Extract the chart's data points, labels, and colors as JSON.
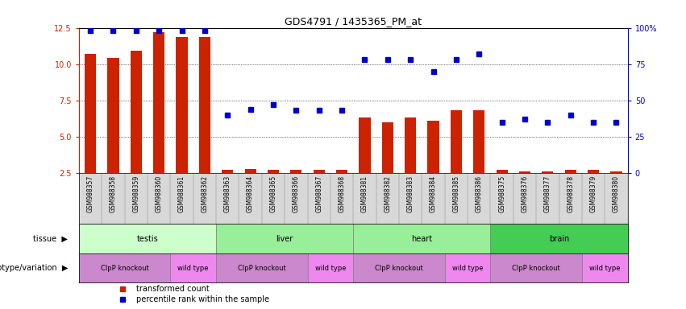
{
  "title": "GDS4791 / 1435365_PM_at",
  "samples": [
    "GSM988357",
    "GSM988358",
    "GSM988359",
    "GSM988360",
    "GSM988361",
    "GSM988362",
    "GSM988363",
    "GSM988364",
    "GSM988365",
    "GSM988366",
    "GSM988367",
    "GSM988368",
    "GSM988381",
    "GSM988382",
    "GSM988383",
    "GSM988384",
    "GSM988385",
    "GSM988386",
    "GSM988375",
    "GSM988376",
    "GSM988377",
    "GSM988378",
    "GSM988379",
    "GSM988380"
  ],
  "bar_values": [
    10.7,
    10.4,
    10.9,
    12.2,
    11.85,
    11.85,
    2.7,
    2.8,
    2.7,
    2.7,
    2.7,
    2.7,
    6.3,
    6.0,
    6.3,
    6.1,
    6.8,
    6.8,
    2.7,
    2.6,
    2.6,
    2.7,
    2.7,
    2.6
  ],
  "percentile_values": [
    98,
    98,
    98,
    98,
    98,
    98,
    40,
    44,
    47,
    43,
    43,
    43,
    78,
    78,
    78,
    70,
    78,
    82,
    35,
    37,
    35,
    40,
    35,
    35
  ],
  "bar_color": "#cc2200",
  "dot_color": "#0000cc",
  "ylim_left": [
    2.5,
    12.5
  ],
  "ylim_right": [
    0,
    100
  ],
  "yticks_left": [
    2.5,
    5.0,
    7.5,
    10.0,
    12.5
  ],
  "yticks_right": [
    0,
    25,
    50,
    75,
    100
  ],
  "tissue_groups": [
    {
      "label": "testis",
      "start": 0,
      "end": 6,
      "color": "#ccffcc"
    },
    {
      "label": "liver",
      "start": 6,
      "end": 12,
      "color": "#99ee99"
    },
    {
      "label": "heart",
      "start": 12,
      "end": 18,
      "color": "#99ee99"
    },
    {
      "label": "brain",
      "start": 18,
      "end": 24,
      "color": "#44cc55"
    }
  ],
  "genotype_groups": [
    {
      "label": "ClpP knockout",
      "start": 0,
      "end": 4,
      "color": "#cc88cc"
    },
    {
      "label": "wild type",
      "start": 4,
      "end": 6,
      "color": "#ee88ee"
    },
    {
      "label": "ClpP knockout",
      "start": 6,
      "end": 10,
      "color": "#cc88cc"
    },
    {
      "label": "wild type",
      "start": 10,
      "end": 12,
      "color": "#ee88ee"
    },
    {
      "label": "ClpP knockout",
      "start": 12,
      "end": 16,
      "color": "#cc88cc"
    },
    {
      "label": "wild type",
      "start": 16,
      "end": 18,
      "color": "#ee88ee"
    },
    {
      "label": "ClpP knockout",
      "start": 18,
      "end": 22,
      "color": "#cc88cc"
    },
    {
      "label": "wild type",
      "start": 22,
      "end": 24,
      "color": "#ee88ee"
    }
  ],
  "legend_items": [
    {
      "label": "transformed count",
      "color": "#cc2200"
    },
    {
      "label": "percentile rank within the sample",
      "color": "#0000cc"
    }
  ],
  "xticklabel_bg": "#d8d8d8"
}
